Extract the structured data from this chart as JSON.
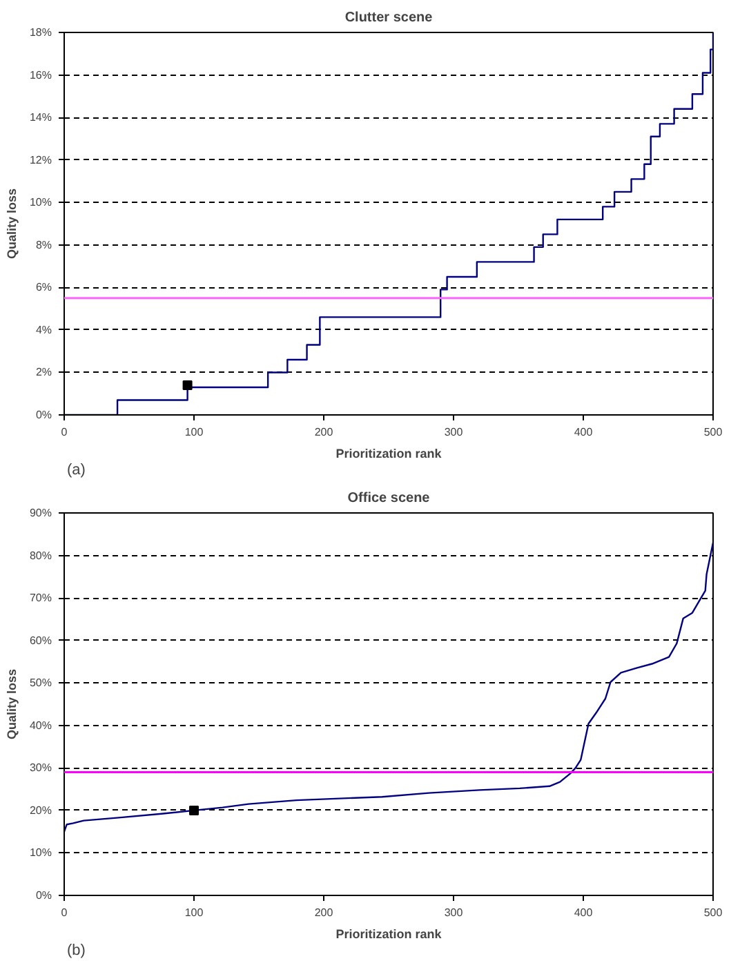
{
  "chart_data": [
    {
      "type": "step",
      "title": "Clutter scene",
      "xlabel": "Prioritization rank",
      "ylabel": "Quality loss",
      "annotations": [
        "(a)"
      ],
      "xlim": [
        0,
        500
      ],
      "xticks": [
        0,
        100,
        200,
        300,
        400,
        500
      ],
      "ylim": [
        0,
        18
      ],
      "yticks": [
        {
          "value": 0,
          "label": "0%"
        },
        {
          "value": 2,
          "label": "2%"
        },
        {
          "value": 4,
          "label": "4%"
        },
        {
          "value": 6,
          "label": "6%"
        },
        {
          "value": 8,
          "label": "8%"
        },
        {
          "value": 10,
          "label": "10%"
        },
        {
          "value": 12,
          "label": "12%"
        },
        {
          "value": 14,
          "label": "14%"
        },
        {
          "value": 16,
          "label": "16%"
        },
        {
          "value": 18,
          "label": "18%"
        }
      ],
      "grid": "y",
      "ref_lines": [
        {
          "axis": "y",
          "value": 5.5,
          "color": "#ff66ff"
        }
      ],
      "series": [
        {
          "color": "#000080",
          "x": [
            0,
            41,
            95,
            157,
            172,
            187,
            197,
            286,
            290,
            295,
            318,
            362,
            369,
            380,
            415,
            424,
            437,
            447,
            452,
            459,
            470,
            484,
            492,
            498,
            500
          ],
          "values": [
            0,
            0.7,
            1.3,
            2.0,
            2.6,
            3.3,
            4.6,
            4.6,
            5.9,
            6.5,
            7.2,
            7.9,
            8.5,
            9.2,
            9.8,
            10.5,
            11.1,
            11.8,
            13.1,
            13.7,
            14.4,
            15.1,
            16.1,
            17.2,
            18.0
          ]
        },
        {
          "type": "scatter",
          "marker": "square",
          "color": "#000000",
          "x": [
            95
          ],
          "values": [
            1.4
          ]
        }
      ]
    },
    {
      "type": "line",
      "title": "Office scene",
      "xlabel": "Prioritization rank",
      "ylabel": "Quality loss",
      "annotations": [
        "(b)"
      ],
      "xlim": [
        0,
        500
      ],
      "xticks": [
        0,
        100,
        200,
        300,
        400,
        500
      ],
      "ylim": [
        0,
        90
      ],
      "yticks": [
        {
          "value": 0,
          "label": "0%"
        },
        {
          "value": 10,
          "label": "10%"
        },
        {
          "value": 20,
          "label": "20%"
        },
        {
          "value": 30,
          "label": "30%"
        },
        {
          "value": 40,
          "label": "40%"
        },
        {
          "value": 50,
          "label": "50%"
        },
        {
          "value": 60,
          "label": "60%"
        },
        {
          "value": 70,
          "label": "70%"
        },
        {
          "value": 80,
          "label": "80%"
        },
        {
          "value": 90,
          "label": "90%"
        }
      ],
      "grid": "y",
      "ref_lines": [
        {
          "axis": "y",
          "value": 29,
          "color": "#ff00ff"
        }
      ],
      "series": [
        {
          "color": "#000080",
          "x": [
            0,
            2,
            7,
            15,
            42,
            75,
            100,
            122,
            142,
            179,
            212,
            245,
            281,
            320,
            351,
            374,
            382,
            390,
            394,
            398,
            404,
            410,
            417,
            421,
            429,
            441,
            453,
            466,
            472,
            477,
            484,
            494,
            495,
            500
          ],
          "values": [
            15.0,
            16.7,
            17.0,
            17.6,
            18.3,
            19.2,
            20.0,
            20.7,
            21.5,
            22.4,
            22.8,
            23.2,
            24.1,
            24.8,
            25.2,
            25.7,
            26.7,
            28.7,
            30.0,
            31.9,
            40.4,
            43.0,
            46.3,
            50.2,
            52.4,
            53.5,
            54.5,
            56.1,
            59.3,
            65.2,
            66.5,
            71.7,
            75.6,
            83.0
          ]
        },
        {
          "type": "scatter",
          "marker": "square",
          "color": "#000000",
          "x": [
            100
          ],
          "values": [
            20.0
          ]
        }
      ]
    }
  ]
}
